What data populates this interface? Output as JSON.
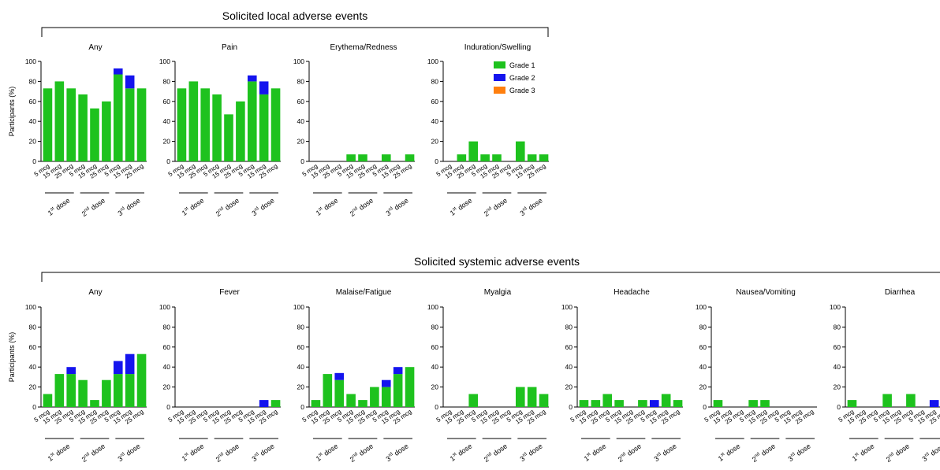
{
  "colors": {
    "grade1": "#1ec21e",
    "grade2": "#1414ee",
    "grade3": "#ff7f0e"
  },
  "legend": [
    {
      "label": "Grade 1",
      "key": "grade1"
    },
    {
      "label": "Grade 2",
      "key": "grade2"
    },
    {
      "label": "Grade 3",
      "key": "grade3"
    }
  ],
  "ylabel": "Participants (%)",
  "categories": [
    "5 mcg",
    "15 mcg",
    "25 mcg",
    "5 mcg",
    "15 mcg",
    "25 mcg",
    "5 mcg",
    "15 mcg",
    "25 mcg"
  ],
  "dose_groups": [
    {
      "num": "1",
      "sup": "st",
      "word": "dose"
    },
    {
      "num": "2",
      "sup": "nd",
      "word": "dose"
    },
    {
      "num": "3",
      "sup": "rd",
      "word": "dose"
    }
  ],
  "sections": [
    {
      "title": "Solicited local adverse events"
    },
    {
      "title": "Solicited systemic adverse events"
    }
  ],
  "chart_data": [
    {
      "type": "bar",
      "stacked": true,
      "section": "Solicited local adverse events",
      "title": "Any",
      "ylim": [
        0,
        100
      ],
      "ylabel": "Participants (%)",
      "series": [
        {
          "name": "Grade 1",
          "values": [
            73,
            80,
            73,
            67,
            53,
            60,
            87,
            73,
            73
          ]
        },
        {
          "name": "Grade 2",
          "values": [
            0,
            0,
            0,
            0,
            0,
            0,
            6,
            13,
            0
          ]
        },
        {
          "name": "Grade 3",
          "values": [
            0,
            0,
            0,
            0,
            0,
            0,
            0,
            0,
            0
          ]
        }
      ]
    },
    {
      "type": "bar",
      "stacked": true,
      "section": "Solicited local adverse events",
      "title": "Pain",
      "ylim": [
        0,
        100
      ],
      "ylabel": "",
      "series": [
        {
          "name": "Grade 1",
          "values": [
            73,
            80,
            73,
            67,
            47,
            60,
            80,
            67,
            73
          ]
        },
        {
          "name": "Grade 2",
          "values": [
            0,
            0,
            0,
            0,
            0,
            0,
            6,
            13,
            0
          ]
        },
        {
          "name": "Grade 3",
          "values": [
            0,
            0,
            0,
            0,
            0,
            0,
            0,
            0,
            0
          ]
        }
      ]
    },
    {
      "type": "bar",
      "stacked": true,
      "section": "Solicited local adverse events",
      "title": "Erythema/Redness",
      "ylim": [
        0,
        100
      ],
      "ylabel": "",
      "series": [
        {
          "name": "Grade 1",
          "values": [
            0,
            0,
            0,
            7,
            7,
            0,
            7,
            0,
            7
          ]
        },
        {
          "name": "Grade 2",
          "values": [
            0,
            0,
            0,
            0,
            0,
            0,
            0,
            0,
            0
          ]
        },
        {
          "name": "Grade 3",
          "values": [
            0,
            0,
            0,
            0,
            0,
            0,
            0,
            0,
            0
          ]
        }
      ]
    },
    {
      "type": "bar",
      "stacked": true,
      "section": "Solicited local adverse events",
      "title": "Induration/Swelling",
      "ylim": [
        0,
        100
      ],
      "ylabel": "",
      "legend": true,
      "series": [
        {
          "name": "Grade 1",
          "values": [
            0,
            7,
            20,
            7,
            7,
            0,
            20,
            7,
            7
          ]
        },
        {
          "name": "Grade 2",
          "values": [
            0,
            0,
            0,
            0,
            0,
            0,
            0,
            0,
            0
          ]
        },
        {
          "name": "Grade 3",
          "values": [
            0,
            0,
            0,
            0,
            0,
            0,
            0,
            0,
            0
          ]
        }
      ]
    },
    {
      "type": "bar",
      "stacked": true,
      "section": "Solicited systemic adverse events",
      "title": "Any",
      "ylim": [
        0,
        100
      ],
      "ylabel": "Participants (%)",
      "series": [
        {
          "name": "Grade 1",
          "values": [
            13,
            33,
            33,
            27,
            7,
            27,
            33,
            33,
            53
          ]
        },
        {
          "name": "Grade 2",
          "values": [
            0,
            0,
            7,
            0,
            0,
            0,
            13,
            20,
            0
          ]
        },
        {
          "name": "Grade 3",
          "values": [
            0,
            0,
            0,
            0,
            0,
            0,
            0,
            0,
            0
          ]
        }
      ]
    },
    {
      "type": "bar",
      "stacked": true,
      "section": "Solicited systemic adverse events",
      "title": "Fever",
      "ylim": [
        0,
        100
      ],
      "ylabel": "",
      "series": [
        {
          "name": "Grade 1",
          "values": [
            0,
            0,
            0,
            0,
            0,
            0,
            0,
            0,
            7
          ]
        },
        {
          "name": "Grade 2",
          "values": [
            0,
            0,
            0,
            0,
            0,
            0,
            0,
            7,
            0
          ]
        },
        {
          "name": "Grade 3",
          "values": [
            0,
            0,
            0,
            0,
            0,
            0,
            0,
            0,
            0
          ]
        }
      ]
    },
    {
      "type": "bar",
      "stacked": true,
      "section": "Solicited systemic adverse events",
      "title": "Malaise/Fatigue",
      "ylim": [
        0,
        100
      ],
      "ylabel": "",
      "series": [
        {
          "name": "Grade 1",
          "values": [
            7,
            33,
            27,
            13,
            7,
            20,
            20,
            33,
            40
          ]
        },
        {
          "name": "Grade 2",
          "values": [
            0,
            0,
            7,
            0,
            0,
            0,
            7,
            7,
            0
          ]
        },
        {
          "name": "Grade 3",
          "values": [
            0,
            0,
            0,
            0,
            0,
            0,
            0,
            0,
            0
          ]
        }
      ]
    },
    {
      "type": "bar",
      "stacked": true,
      "section": "Solicited systemic adverse events",
      "title": "Myalgia",
      "ylim": [
        0,
        100
      ],
      "ylabel": "",
      "series": [
        {
          "name": "Grade 1",
          "values": [
            0,
            0,
            13,
            0,
            0,
            0,
            20,
            20,
            13
          ]
        },
        {
          "name": "Grade 2",
          "values": [
            0,
            0,
            0,
            0,
            0,
            0,
            0,
            0,
            0
          ]
        },
        {
          "name": "Grade 3",
          "values": [
            0,
            0,
            0,
            0,
            0,
            0,
            0,
            0,
            0
          ]
        }
      ]
    },
    {
      "type": "bar",
      "stacked": true,
      "section": "Solicited systemic adverse events",
      "title": "Headache",
      "ylim": [
        0,
        100
      ],
      "ylabel": "",
      "series": [
        {
          "name": "Grade 1",
          "values": [
            7,
            7,
            13,
            7,
            0,
            7,
            0,
            13,
            7
          ]
        },
        {
          "name": "Grade 2",
          "values": [
            0,
            0,
            0,
            0,
            0,
            0,
            7,
            0,
            0
          ]
        },
        {
          "name": "Grade 3",
          "values": [
            0,
            0,
            0,
            0,
            0,
            0,
            0,
            0,
            0
          ]
        }
      ]
    },
    {
      "type": "bar",
      "stacked": true,
      "section": "Solicited systemic adverse events",
      "title": "Nausea/Vomiting",
      "ylim": [
        0,
        100
      ],
      "ylabel": "",
      "series": [
        {
          "name": "Grade 1",
          "values": [
            7,
            0,
            0,
            7,
            7,
            0,
            0,
            0,
            0
          ]
        },
        {
          "name": "Grade 2",
          "values": [
            0,
            0,
            0,
            0,
            0,
            0,
            0,
            0,
            0
          ]
        },
        {
          "name": "Grade 3",
          "values": [
            0,
            0,
            0,
            0,
            0,
            0,
            0,
            0,
            0
          ]
        }
      ]
    },
    {
      "type": "bar",
      "stacked": true,
      "section": "Solicited systemic adverse events",
      "title": "Diarrhea",
      "ylim": [
        0,
        100
      ],
      "ylabel": "",
      "series": [
        {
          "name": "Grade 1",
          "values": [
            7,
            0,
            0,
            13,
            0,
            13,
            0,
            0,
            0
          ]
        },
        {
          "name": "Grade 2",
          "values": [
            0,
            0,
            0,
            0,
            0,
            0,
            0,
            7,
            0
          ]
        },
        {
          "name": "Grade 3",
          "values": [
            0,
            0,
            0,
            0,
            0,
            0,
            0,
            0,
            0
          ]
        }
      ]
    }
  ]
}
